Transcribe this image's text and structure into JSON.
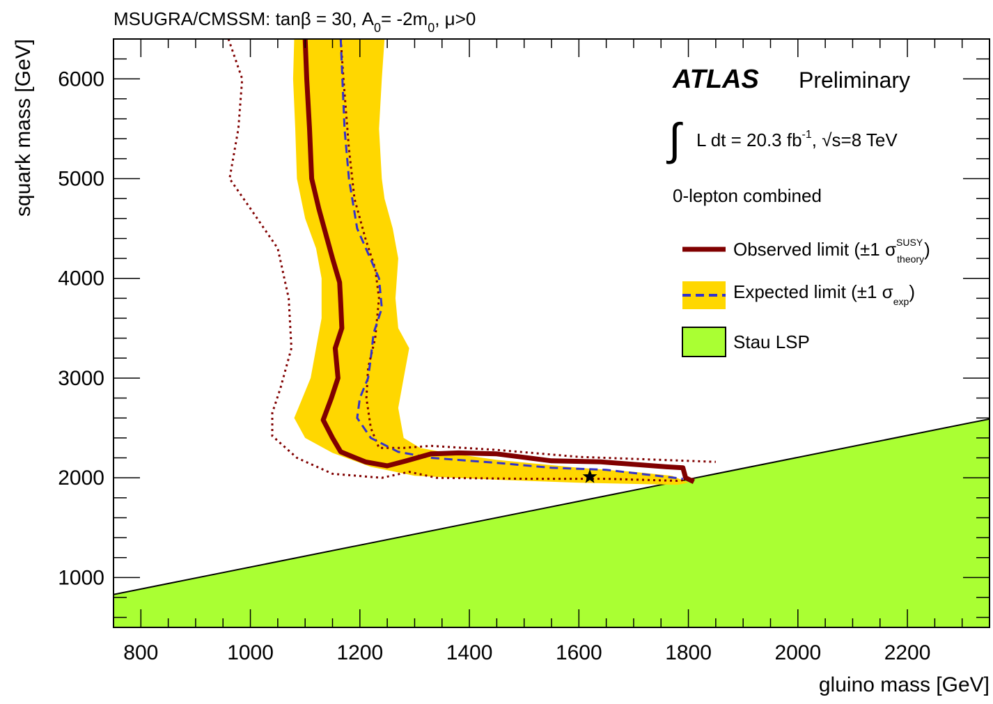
{
  "colors": {
    "observed": "#800000",
    "expected": "#3333cc",
    "band": "#ffd700",
    "stau": "#aaff33",
    "axis": "#000000"
  },
  "text": {
    "top_title_parts": [
      "MSUGRA/CMSSM: tanβ = 30, A",
      "0",
      "= -2m",
      "0",
      ", μ>0"
    ],
    "atlas": "ATLAS",
    "preliminary": "Preliminary",
    "lumi_integral": "∫",
    "lumi_prefix": "L dt = 20.3 fb",
    "lumi_exp": "-1",
    "lumi_sqrt": "√",
    "lumi_suffix": "s=8 TeV",
    "analysis": "0-lepton combined",
    "obs_prefix": "Observed limit (±1 σ",
    "obs_sup": "SUSY",
    "obs_sub": "theory",
    "obs_close": ")",
    "exp_prefix": "Expected limit (±1 σ",
    "exp_sub": "exp",
    "exp_close": ")",
    "stau_label": "Stau LSP"
  },
  "chart_data": {
    "type": "line",
    "xlabel": "gluino mass [GeV]",
    "ylabel": "squark mass [GeV]",
    "xlim": [
      750,
      2350
    ],
    "ylim": [
      500,
      6400
    ],
    "x_ticks": [
      800,
      1000,
      1200,
      1400,
      1600,
      1800,
      2000,
      2200
    ],
    "y_ticks": [
      1000,
      2000,
      3000,
      4000,
      5000,
      6000
    ],
    "legend_position": "top-right",
    "grid": false,
    "stau_lsp_boundary": [
      [
        750,
        830
      ],
      [
        2350,
        2590
      ]
    ],
    "best_fit_star": [
      1620,
      2010
    ],
    "series": [
      {
        "name": "Observed limit",
        "style": "solid",
        "points": [
          [
            1100,
            6400
          ],
          [
            1103,
            6000
          ],
          [
            1108,
            5500
          ],
          [
            1112,
            5000
          ],
          [
            1125,
            4700
          ],
          [
            1140,
            4400
          ],
          [
            1150,
            4200
          ],
          [
            1163,
            3960
          ],
          [
            1165,
            3750
          ],
          [
            1167,
            3500
          ],
          [
            1155,
            3300
          ],
          [
            1160,
            3000
          ],
          [
            1148,
            2800
          ],
          [
            1133,
            2580
          ],
          [
            1150,
            2400
          ],
          [
            1165,
            2260
          ],
          [
            1210,
            2160
          ],
          [
            1250,
            2120
          ],
          [
            1285,
            2170
          ],
          [
            1330,
            2240
          ],
          [
            1380,
            2250
          ],
          [
            1450,
            2240
          ],
          [
            1550,
            2170
          ],
          [
            1640,
            2160
          ],
          [
            1760,
            2110
          ],
          [
            1790,
            2100
          ],
          [
            1795,
            2000
          ],
          [
            1810,
            1960
          ]
        ]
      },
      {
        "name": "Observed limit -1σ theory",
        "style": "dotted",
        "points": [
          [
            960,
            6400
          ],
          [
            985,
            6000
          ],
          [
            978,
            5500
          ],
          [
            962,
            5000
          ],
          [
            1000,
            4700
          ],
          [
            1050,
            4300
          ],
          [
            1070,
            3800
          ],
          [
            1075,
            3300
          ],
          [
            1055,
            2900
          ],
          [
            1040,
            2650
          ],
          [
            1040,
            2420
          ],
          [
            1085,
            2200
          ],
          [
            1150,
            2040
          ],
          [
            1240,
            2000
          ],
          [
            1290,
            2060
          ],
          [
            1340,
            2000
          ],
          [
            1500,
            1990
          ],
          [
            1650,
            1990
          ],
          [
            1780,
            1970
          ],
          [
            1810,
            1990
          ]
        ]
      },
      {
        "name": "Observed limit +1σ theory",
        "style": "dotted",
        "points": [
          [
            1165,
            6400
          ],
          [
            1170,
            6000
          ],
          [
            1180,
            5300
          ],
          [
            1190,
            4800
          ],
          [
            1210,
            4400
          ],
          [
            1228,
            4100
          ],
          [
            1235,
            3800
          ],
          [
            1228,
            3400
          ],
          [
            1215,
            3100
          ],
          [
            1212,
            2800
          ],
          [
            1220,
            2500
          ],
          [
            1235,
            2300
          ],
          [
            1280,
            2300
          ],
          [
            1330,
            2320
          ],
          [
            1450,
            2280
          ],
          [
            1600,
            2210
          ],
          [
            1750,
            2180
          ],
          [
            1850,
            2160
          ]
        ]
      },
      {
        "name": "Expected limit",
        "style": "dashed",
        "points": [
          [
            1165,
            6400
          ],
          [
            1168,
            6000
          ],
          [
            1172,
            5500
          ],
          [
            1180,
            5000
          ],
          [
            1195,
            4500
          ],
          [
            1215,
            4250
          ],
          [
            1235,
            4000
          ],
          [
            1240,
            3700
          ],
          [
            1225,
            3450
          ],
          [
            1220,
            3200
          ],
          [
            1215,
            3000
          ],
          [
            1200,
            2800
          ],
          [
            1195,
            2600
          ],
          [
            1220,
            2400
          ],
          [
            1270,
            2260
          ],
          [
            1330,
            2200
          ],
          [
            1450,
            2150
          ],
          [
            1550,
            2100
          ],
          [
            1650,
            2080
          ],
          [
            1790,
            1990
          ]
        ]
      },
      {
        "name": "Expected ±1σ exp band",
        "style": "band",
        "points": [
          [
            1080,
            6400
          ],
          [
            1078,
            6000
          ],
          [
            1082,
            5500
          ],
          [
            1085,
            5000
          ],
          [
            1100,
            4600
          ],
          [
            1120,
            4300
          ],
          [
            1130,
            4000
          ],
          [
            1130,
            3600
          ],
          [
            1120,
            3300
          ],
          [
            1110,
            3000
          ],
          [
            1095,
            2800
          ],
          [
            1080,
            2600
          ],
          [
            1100,
            2400
          ],
          [
            1150,
            2250
          ],
          [
            1220,
            2110
          ],
          [
            1300,
            2020
          ],
          [
            1450,
            1980
          ],
          [
            1600,
            1950
          ],
          [
            1780,
            1930
          ],
          [
            1800,
            1950
          ],
          [
            1770,
            2020
          ],
          [
            1700,
            2060
          ],
          [
            1600,
            2100
          ],
          [
            1450,
            2180
          ],
          [
            1360,
            2250
          ],
          [
            1310,
            2300
          ],
          [
            1280,
            2400
          ],
          [
            1270,
            2700
          ],
          [
            1280,
            3000
          ],
          [
            1290,
            3300
          ],
          [
            1270,
            3500
          ],
          [
            1265,
            3800
          ],
          [
            1270,
            4200
          ],
          [
            1260,
            4500
          ],
          [
            1245,
            4800
          ],
          [
            1240,
            5000
          ],
          [
            1235,
            5500
          ],
          [
            1240,
            6000
          ],
          [
            1245,
            6400
          ]
        ]
      }
    ]
  }
}
